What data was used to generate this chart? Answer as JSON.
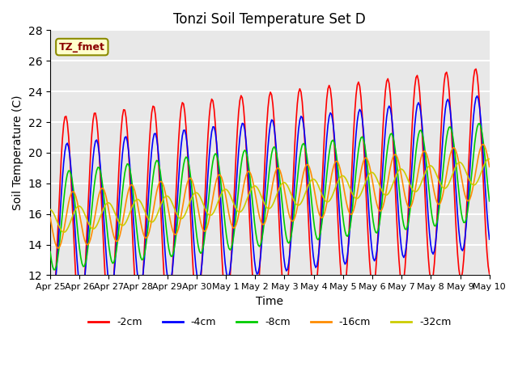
{
  "title": "Tonzi Soil Temperature Set D",
  "xlabel": "Time",
  "ylabel": "Soil Temperature (C)",
  "ylim": [
    12,
    28
  ],
  "annotation_text": "TZ_fmet",
  "legend_labels": [
    "-2cm",
    "-4cm",
    "-8cm",
    "-16cm",
    "-32cm"
  ],
  "legend_colors": [
    "#FF0000",
    "#0000FF",
    "#00CC00",
    "#FF8C00",
    "#CCCC00"
  ],
  "background_color": "#E8E8E8",
  "grid_color": "#FFFFFF",
  "x_tick_labels": [
    "Apr 25",
    "Apr 26",
    "Apr 27",
    "Apr 28",
    "Apr 29",
    "Apr 30",
    "May 1",
    "May 2",
    "May 3",
    "May 4",
    "May 5",
    "May 6",
    "May 7",
    "May 8",
    "May 9",
    "May 10"
  ],
  "n_points": 360,
  "figsize": [
    6.4,
    4.8
  ],
  "dpi": 100
}
